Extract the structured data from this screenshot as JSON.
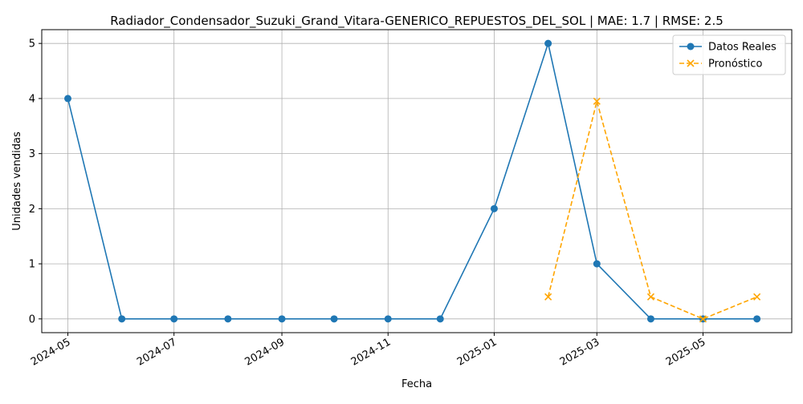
{
  "chart_data": {
    "type": "line",
    "title": "Radiador_Condensador_Suzuki_Grand_Vitara-GENERICO_REPUESTOS_DEL_SOL | MAE: 1.7 | RMSE: 2.5",
    "xlabel": "Fecha",
    "ylabel": "Unidades vendidas",
    "x_ticks": [
      "2024-05",
      "2024-07",
      "2024-09",
      "2024-11",
      "2025-01",
      "2025-03",
      "2025-05"
    ],
    "y_ticks": [
      0,
      1,
      2,
      3,
      4,
      5
    ],
    "ylim": [
      -0.25,
      5.25
    ],
    "xlim": [
      "2024-04-16",
      "2025-06-21"
    ],
    "grid": true,
    "legend_position": "top-right",
    "series": [
      {
        "name": "Datos Reales",
        "color": "#1f77b4",
        "style": "solid",
        "marker": "circle",
        "x": [
          "2024-05-01",
          "2024-06-01",
          "2024-07-01",
          "2024-08-01",
          "2024-09-01",
          "2024-10-01",
          "2024-11-01",
          "2024-12-01",
          "2025-01-01",
          "2025-02-01",
          "2025-03-01",
          "2025-04-01",
          "2025-05-01",
          "2025-06-01"
        ],
        "values": [
          4,
          0,
          0,
          0,
          0,
          0,
          0,
          0,
          2,
          5,
          1,
          0,
          0,
          0
        ]
      },
      {
        "name": "Pronóstico",
        "color": "#ffa500",
        "style": "dashed",
        "marker": "x",
        "x": [
          "2025-02-01",
          "2025-03-01",
          "2025-04-01",
          "2025-05-01",
          "2025-06-01"
        ],
        "values": [
          0.4,
          3.95,
          0.4,
          0.0,
          0.4
        ]
      }
    ]
  }
}
